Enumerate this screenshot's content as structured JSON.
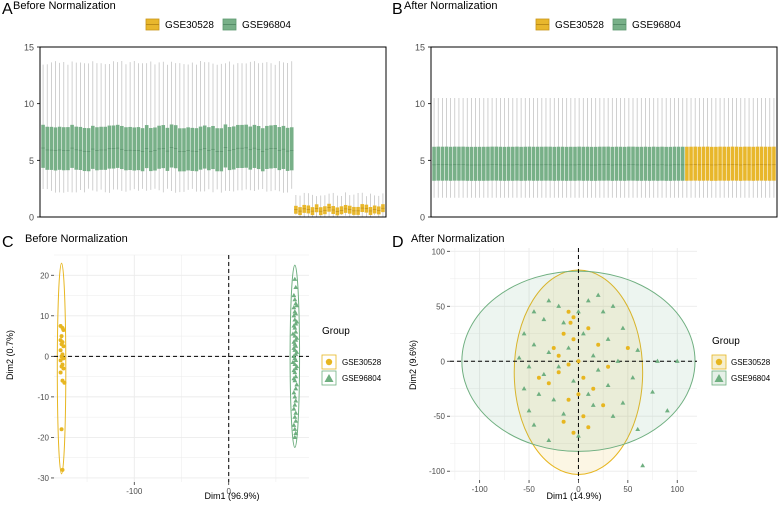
{
  "colors": {
    "gse30528": "#E7B620",
    "gse96804": "#6FAF80",
    "gse30528_fill": "#E8B72C",
    "gse96804_fill": "#78B088",
    "whisker": "#BDBDBD",
    "axis": "#000000",
    "grid": "#EBEBEB",
    "tick_text": "#4D4D4D"
  },
  "chart_data": [
    {
      "panel": "A",
      "type": "box",
      "title": "Before Normalization",
      "legend": [
        "GSE30528",
        "GSE96804"
      ],
      "ylim": [
        0,
        15
      ],
      "yticks": [
        0,
        5,
        10,
        15
      ],
      "xlabel": "",
      "ylabel": "",
      "series": [
        {
          "name": "GSE96804",
          "n": 61,
          "q1": 4.2,
          "median": 5.95,
          "q3": 8.0,
          "whisker_low": 2.3,
          "whisker_high": 13.6
        },
        {
          "name": "GSE30528",
          "n": 22,
          "q1": 0.3,
          "median": 0.65,
          "q3": 1.0,
          "whisker_low": 0.0,
          "whisker_high": 2.0
        }
      ]
    },
    {
      "panel": "B",
      "type": "box",
      "title": "After Normalization",
      "legend": [
        "GSE30528",
        "GSE96804"
      ],
      "ylim": [
        0,
        15
      ],
      "yticks": [
        0,
        5,
        10,
        15
      ],
      "xlabel": "",
      "ylabel": "",
      "series": [
        {
          "name": "GSE96804",
          "n": 61,
          "q1": 3.2,
          "median": 4.6,
          "q3": 6.2,
          "whisker_low": 1.7,
          "whisker_high": 10.5
        },
        {
          "name": "GSE30528",
          "n": 22,
          "q1": 3.2,
          "median": 4.6,
          "q3": 6.2,
          "whisker_low": 1.7,
          "whisker_high": 10.5
        }
      ]
    },
    {
      "panel": "C",
      "type": "scatter",
      "title": "Before Normalization",
      "xlabel": "Dim1 (96.9%)",
      "ylabel": "Dim2 (0.7%)",
      "xlim": [
        -185,
        85
      ],
      "ylim": [
        -31,
        25
      ],
      "xticks": [
        -100,
        0
      ],
      "yticks": [
        -30,
        -20,
        -10,
        0,
        10,
        20
      ],
      "legend_title": "Group",
      "legend": [
        "GSE30528",
        "GSE96804"
      ],
      "series": [
        {
          "name": "GSE30528",
          "marker": "circle",
          "ellipse": {
            "cx": -177,
            "cy": -3,
            "rx": 4.5,
            "ry": 26
          },
          "points": [
            [
              -178,
              7.5
            ],
            [
              -176,
              7
            ],
            [
              -175,
              6.5
            ],
            [
              -177,
              5
            ],
            [
              -178,
              4
            ],
            [
              -176,
              3.5
            ],
            [
              -177,
              3
            ],
            [
              -175,
              2.5
            ],
            [
              -178,
              1.5
            ],
            [
              -176,
              0.5
            ],
            [
              -177,
              0
            ],
            [
              -175,
              -0.5
            ],
            [
              -178,
              -1
            ],
            [
              -176,
              -2
            ],
            [
              -177,
              -2.5
            ],
            [
              -175,
              -3
            ],
            [
              -178,
              -4
            ],
            [
              -176,
              -6
            ],
            [
              -174,
              -6.5
            ],
            [
              -177,
              -18
            ],
            [
              -176,
              -28
            ]
          ]
        },
        {
          "name": "GSE96804",
          "marker": "triangle",
          "ellipse": {
            "cx": 70,
            "cy": 0,
            "rx": 5,
            "ry": 22.5
          },
          "points": [
            [
              70,
              19
            ],
            [
              71,
              17
            ],
            [
              69,
              15
            ],
            [
              70,
              14
            ],
            [
              71,
              13
            ],
            [
              72,
              12.5
            ],
            [
              69,
              12
            ],
            [
              70,
              11
            ],
            [
              71,
              10.5
            ],
            [
              69,
              10
            ],
            [
              70,
              9
            ],
            [
              72,
              8.5
            ],
            [
              71,
              8
            ],
            [
              69,
              7.5
            ],
            [
              70,
              7
            ],
            [
              71,
              6
            ],
            [
              68,
              5.5
            ],
            [
              70,
              5
            ],
            [
              72,
              4.5
            ],
            [
              71,
              4
            ],
            [
              69,
              3.5
            ],
            [
              70,
              3
            ],
            [
              71,
              2.5
            ],
            [
              69,
              2
            ],
            [
              70,
              1.5
            ],
            [
              72,
              1
            ],
            [
              71,
              0.5
            ],
            [
              69,
              0
            ],
            [
              70,
              -0.5
            ],
            [
              71,
              -1
            ],
            [
              68,
              -1.5
            ],
            [
              70,
              -2
            ],
            [
              72,
              -2.5
            ],
            [
              71,
              -3
            ],
            [
              69,
              -3.5
            ],
            [
              70,
              -4
            ],
            [
              71,
              -5
            ],
            [
              69,
              -5.5
            ],
            [
              70,
              -6
            ],
            [
              72,
              -7
            ],
            [
              71,
              -8
            ],
            [
              69,
              -9
            ],
            [
              70,
              -10
            ],
            [
              71,
              -11
            ],
            [
              70,
              -12
            ],
            [
              69,
              -13
            ],
            [
              71,
              -14
            ],
            [
              70,
              -15
            ],
            [
              71,
              -16
            ],
            [
              69,
              -17
            ],
            [
              70,
              -18
            ],
            [
              71,
              -19
            ],
            [
              70,
              -20
            ]
          ]
        }
      ]
    },
    {
      "panel": "D",
      "type": "scatter",
      "title": "After Normalization",
      "xlabel": "Dim1 (14.9%)",
      "ylabel": "Dim2 (9.6%)",
      "xlim": [
        -130,
        120
      ],
      "ylim": [
        -108,
        103
      ],
      "xticks": [
        -100,
        -50,
        0,
        50,
        100
      ],
      "yticks": [
        -100,
        -50,
        0,
        50,
        100
      ],
      "legend_title": "Group",
      "legend": [
        "GSE30528",
        "GSE96804"
      ],
      "series": [
        {
          "name": "GSE30528",
          "marker": "circle",
          "ellipse": {
            "cx": 0,
            "cy": -10,
            "rx": 65,
            "ry": 93
          },
          "points": [
            [
              -10,
              45
            ],
            [
              -5,
              40
            ],
            [
              -8,
              35
            ],
            [
              10,
              30
            ],
            [
              -15,
              25
            ],
            [
              -5,
              20
            ],
            [
              20,
              15
            ],
            [
              -25,
              12
            ],
            [
              -20,
              5
            ],
            [
              0,
              0
            ],
            [
              -10,
              -3
            ],
            [
              30,
              -5
            ],
            [
              -20,
              -10
            ],
            [
              5,
              -15
            ],
            [
              -30,
              -20
            ],
            [
              15,
              -25
            ],
            [
              0,
              -30
            ],
            [
              -10,
              -35
            ],
            [
              25,
              -40
            ],
            [
              5,
              -50
            ],
            [
              -15,
              -55
            ],
            [
              10,
              -60
            ],
            [
              -5,
              -65
            ],
            [
              50,
              12
            ],
            [
              -40,
              -15
            ]
          ]
        },
        {
          "name": "GSE96804",
          "marker": "triangle",
          "ellipse": {
            "cx": 0,
            "cy": 0,
            "rx": 118,
            "ry": 82
          },
          "points": [
            [
              -30,
              55
            ],
            [
              10,
              55
            ],
            [
              20,
              60
            ],
            [
              -20,
              50
            ],
            [
              35,
              50
            ],
            [
              -45,
              45
            ],
            [
              0,
              45
            ],
            [
              25,
              45
            ],
            [
              -35,
              38
            ],
            [
              -15,
              35
            ],
            [
              45,
              30
            ],
            [
              -55,
              25
            ],
            [
              5,
              25
            ],
            [
              30,
              20
            ],
            [
              -45,
              15
            ],
            [
              -10,
              12
            ],
            [
              60,
              10
            ],
            [
              -30,
              8
            ],
            [
              15,
              5
            ],
            [
              -60,
              3
            ],
            [
              40,
              0
            ],
            [
              80,
              0
            ],
            [
              100,
              0
            ],
            [
              -50,
              -5
            ],
            [
              -20,
              -5
            ],
            [
              20,
              -8
            ],
            [
              -35,
              -12
            ],
            [
              55,
              -15
            ],
            [
              -5,
              -18
            ],
            [
              30,
              -22
            ],
            [
              -55,
              -25
            ],
            [
              75,
              -28
            ],
            [
              10,
              -30
            ],
            [
              -25,
              -35
            ],
            [
              45,
              -38
            ],
            [
              -50,
              -45
            ],
            [
              90,
              -45
            ],
            [
              -15,
              -48
            ],
            [
              35,
              -50
            ],
            [
              -45,
              -58
            ],
            [
              60,
              -62
            ],
            [
              0,
              -68
            ],
            [
              -30,
              -72
            ],
            [
              65,
              -95
            ],
            [
              15,
              -40
            ],
            [
              -40,
              -30
            ]
          ]
        }
      ]
    }
  ]
}
